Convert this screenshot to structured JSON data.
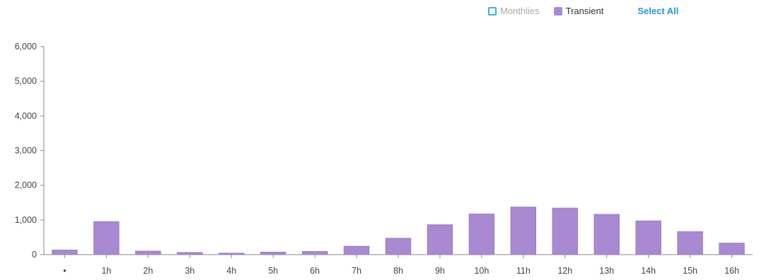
{
  "legend": {
    "items": [
      {
        "label": "Monthlies",
        "color": "#3bb0e0",
        "state": "inactive"
      },
      {
        "label": "Transient",
        "color": "#a98ad2",
        "state": "active"
      }
    ],
    "select_all_label": "Select All"
  },
  "chart_data": {
    "type": "bar",
    "categories": [
      "•",
      "1h",
      "2h",
      "3h",
      "4h",
      "5h",
      "6h",
      "7h",
      "8h",
      "9h",
      "10h",
      "11h",
      "12h",
      "13h",
      "14h",
      "15h",
      "16h"
    ],
    "series": [
      {
        "name": "Monthlies",
        "values": [
          0,
          0,
          0,
          0,
          0,
          0,
          0,
          0,
          0,
          0,
          0,
          0,
          0,
          0,
          0,
          0,
          0
        ],
        "visible": false
      },
      {
        "name": "Transient",
        "values": [
          130,
          950,
          100,
          60,
          40,
          70,
          90,
          240,
          470,
          860,
          1170,
          1370,
          1340,
          1160,
          970,
          660,
          330
        ],
        "visible": true
      }
    ],
    "ylim": [
      0,
      6000
    ],
    "yticks": [
      "0",
      "1,000",
      "2,000",
      "3,000",
      "4,000",
      "5,000",
      "6,000"
    ],
    "ytick_values": [
      0,
      1000,
      2000,
      3000,
      4000,
      5000,
      6000
    ],
    "grid": false,
    "legend_position": "top-right",
    "bar_color": "#a98ad2",
    "bar_edge_color": "#9679c4"
  }
}
